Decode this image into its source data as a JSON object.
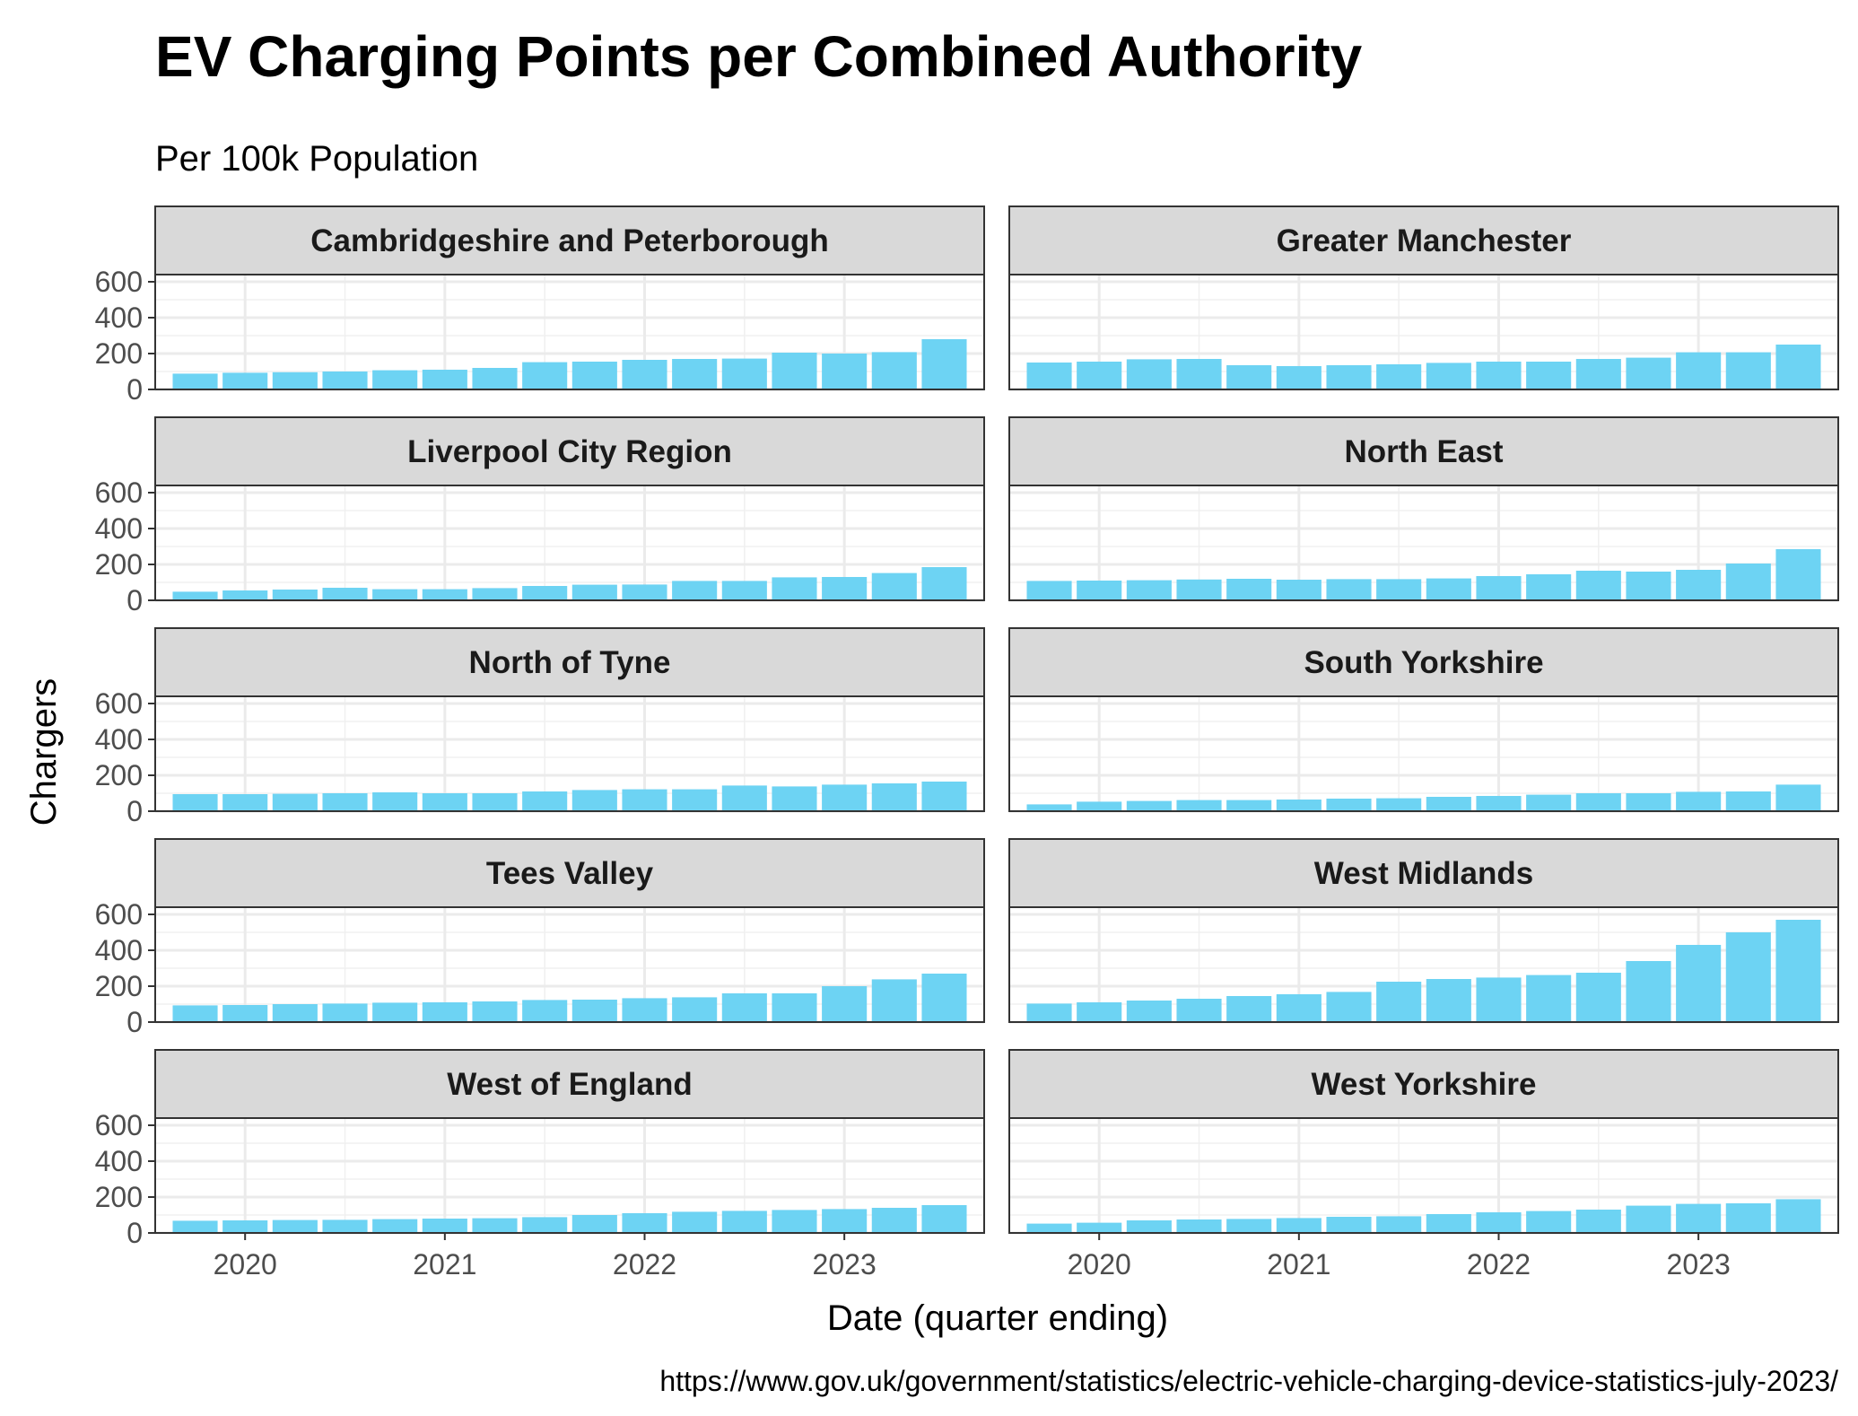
{
  "chart_data": {
    "type": "bar",
    "title": "EV Charging Points per Combined Authority",
    "subtitle": "Per 100k Population",
    "xlabel": "Date (quarter ending)",
    "ylabel": "Chargers",
    "caption": "https://www.gov.uk/government/statistics/electric-vehicle-charging-device-statistics-july-2023/",
    "x_ticks": [
      "2020",
      "2021",
      "2022",
      "2023"
    ],
    "y_ticks": [
      "0",
      "200",
      "400",
      "600"
    ],
    "ylim": [
      0,
      640
    ],
    "grid": true,
    "bar_color": "#6dd3f3",
    "strip_color": "#d9d9d9",
    "x": [
      "2019-10",
      "2020-01",
      "2020-04",
      "2020-07",
      "2020-10",
      "2021-01",
      "2021-04",
      "2021-07",
      "2021-10",
      "2022-01",
      "2022-04",
      "2022-07",
      "2022-10",
      "2023-01",
      "2023-04",
      "2023-07"
    ],
    "panels": [
      {
        "name": "Cambridgeshire and Peterborough",
        "values": [
          88,
          93,
          96,
          100,
          107,
          110,
          120,
          152,
          155,
          165,
          170,
          172,
          205,
          200,
          208,
          280
        ]
      },
      {
        "name": "Greater Manchester",
        "values": [
          150,
          155,
          168,
          170,
          135,
          130,
          135,
          140,
          148,
          155,
          155,
          170,
          177,
          207,
          207,
          250
        ]
      },
      {
        "name": "Liverpool City Region",
        "values": [
          48,
          55,
          60,
          70,
          62,
          62,
          68,
          80,
          87,
          88,
          108,
          108,
          128,
          130,
          152,
          185
        ]
      },
      {
        "name": "North East",
        "values": [
          108,
          110,
          112,
          116,
          120,
          115,
          118,
          118,
          122,
          135,
          145,
          165,
          160,
          170,
          205,
          285
        ]
      },
      {
        "name": "North of Tyne",
        "values": [
          95,
          95,
          97,
          100,
          105,
          100,
          100,
          110,
          118,
          122,
          122,
          143,
          138,
          148,
          155,
          165
        ]
      },
      {
        "name": "South Yorkshire",
        "values": [
          38,
          53,
          57,
          62,
          62,
          65,
          70,
          72,
          80,
          85,
          92,
          100,
          100,
          108,
          110,
          148
        ]
      },
      {
        "name": "Tees Valley",
        "values": [
          93,
          95,
          100,
          103,
          108,
          110,
          115,
          123,
          125,
          133,
          138,
          160,
          160,
          200,
          238,
          270
        ]
      },
      {
        "name": "West Midlands",
        "values": [
          103,
          110,
          120,
          130,
          145,
          155,
          168,
          225,
          240,
          248,
          262,
          275,
          340,
          430,
          500,
          570
        ]
      },
      {
        "name": "West of England",
        "values": [
          68,
          70,
          72,
          73,
          77,
          80,
          82,
          88,
          100,
          110,
          118,
          123,
          128,
          133,
          140,
          155
        ]
      },
      {
        "name": "West Yorkshire",
        "values": [
          52,
          57,
          70,
          75,
          78,
          83,
          90,
          93,
          105,
          115,
          122,
          130,
          152,
          162,
          165,
          188
        ]
      }
    ]
  }
}
